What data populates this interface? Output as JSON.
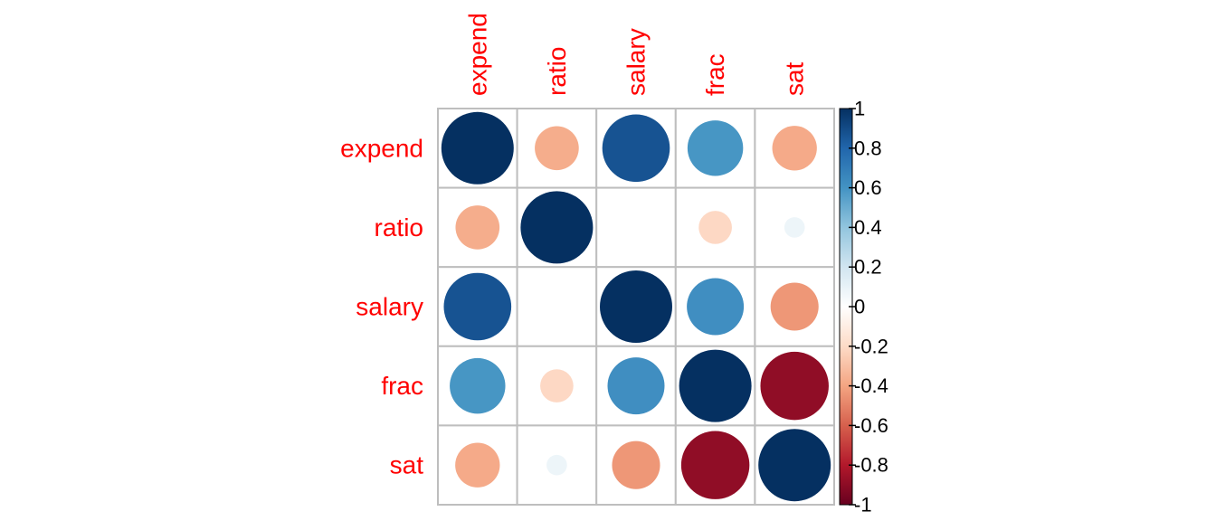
{
  "chart_data": {
    "type": "heatmap",
    "variables": [
      "expend",
      "ratio",
      "salary",
      "frac",
      "sat"
    ],
    "matrix": [
      [
        1.0,
        -0.37,
        0.87,
        0.59,
        -0.38
      ],
      [
        -0.37,
        1.0,
        0.0,
        -0.21,
        0.08
      ],
      [
        0.87,
        0.0,
        1.0,
        0.62,
        -0.44
      ],
      [
        0.59,
        -0.21,
        0.62,
        1.0,
        -0.89
      ],
      [
        -0.38,
        0.08,
        -0.44,
        -0.89,
        1.0
      ]
    ],
    "colorbar": {
      "range": [
        -1,
        1
      ],
      "ticks": [
        "-1",
        "-0.8",
        "-0.6",
        "-0.4",
        "-0.2",
        "0",
        "0.2",
        "0.4",
        "0.6",
        "0.8",
        "1"
      ],
      "colors": [
        "#67001F",
        "#B2182B",
        "#D6604D",
        "#F4A582",
        "#FDDBC7",
        "#FFFFFF",
        "#D1E5F0",
        "#92C5DE",
        "#4393C3",
        "#2166AC",
        "#053061"
      ]
    },
    "label_color": "#FF0000",
    "grid_color": "#BEBEBE"
  }
}
